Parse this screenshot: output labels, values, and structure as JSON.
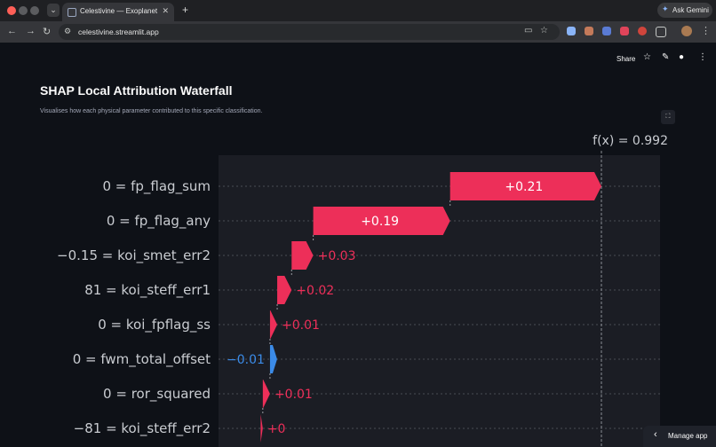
{
  "browser": {
    "tab_title": "Celestivine — Exoplanet Disc",
    "url": "celestivine.streamlit.app",
    "new_tab": "+",
    "ask_gemini": "Ask Gemini"
  },
  "app": {
    "share_label": "Share",
    "title": "SHAP Local Attribution Waterfall",
    "caption": "Visualises how each physical parameter contributed to this specific classification.",
    "manage_app_label": "Manage app"
  },
  "chart_data": {
    "type": "waterfall",
    "fx_label": "f(x) = 0.992",
    "fx": 0.992,
    "colors": {
      "positive": "#ed2f59",
      "negative": "#3b8be8",
      "background": "#1b1d24"
    },
    "features": [
      {
        "label": "0 = fp_flag_sum",
        "text": "+0.21",
        "value": 0.21
      },
      {
        "label": "0 = fp_flag_any",
        "text": "+0.19",
        "value": 0.19
      },
      {
        "label": "−0.15 = koi_smet_err2",
        "text": "+0.03",
        "value": 0.03
      },
      {
        "label": "81 = koi_steff_err1",
        "text": "+0.02",
        "value": 0.02
      },
      {
        "label": "0 = koi_fpflag_ss",
        "text": "+0.01",
        "value": 0.01
      },
      {
        "label": "0 = fwm_total_offset",
        "text": "−0.01",
        "value": -0.01
      },
      {
        "label": "0 = ror_squared",
        "text": "+0.01",
        "value": 0.01
      },
      {
        "label": "−81 = koi_steff_err2",
        "text": "+0",
        "value": 0.003
      }
    ]
  }
}
